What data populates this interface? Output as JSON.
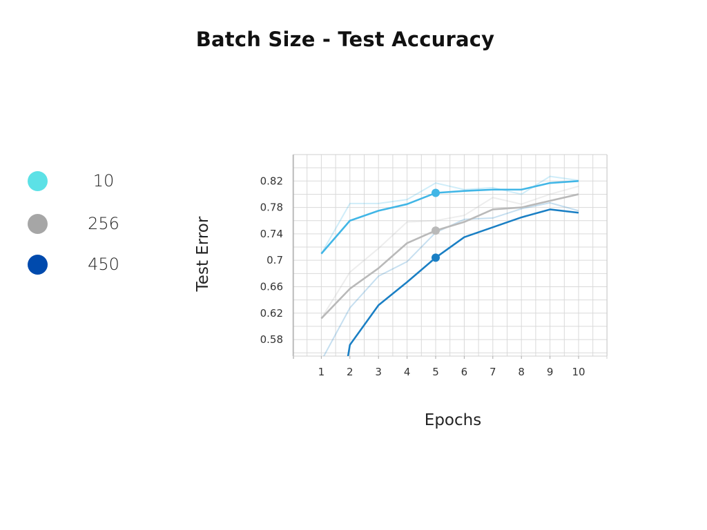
{
  "chart_data": {
    "type": "line",
    "title": "Batch Size - Test Accuracy",
    "xlabel": "Epochs",
    "ylabel": "Test Error",
    "x": [
      1,
      2,
      3,
      4,
      5,
      6,
      7,
      8,
      9,
      10
    ],
    "x_ticks": [
      "1",
      "2",
      "3",
      "4",
      "5",
      "6",
      "7",
      "8",
      "9",
      "10"
    ],
    "y_ticks": [
      "0.58",
      "0.62",
      "0.66",
      "0.7",
      "0.74",
      "0.78",
      "0.82"
    ],
    "xlim": [
      0,
      11
    ],
    "ylim": [
      0.555,
      0.86
    ],
    "grid": true,
    "legend_position": "left",
    "series": [
      {
        "name": "10",
        "color": "#41b6e6",
        "marker_index": 4,
        "values": [
          0.71,
          0.76,
          0.775,
          0.785,
          0.802,
          0.805,
          0.807,
          0.807,
          0.817,
          0.82
        ],
        "raw_values": [
          0.71,
          0.786,
          0.786,
          0.792,
          0.817,
          0.807,
          0.81,
          0.8,
          0.827,
          0.821
        ]
      },
      {
        "name": "256",
        "color": "#b9b9b9",
        "marker_index": 4,
        "values": [
          0.612,
          0.657,
          0.688,
          0.726,
          0.745,
          0.758,
          0.777,
          0.78,
          0.79,
          0.8
        ],
        "raw_values": [
          0.612,
          0.682,
          0.718,
          0.758,
          0.76,
          0.768,
          0.795,
          0.785,
          0.8,
          0.812
        ]
      },
      {
        "name": "450",
        "color": "#1a7fc4",
        "marker_index": 4,
        "values": [
          null,
          0.572,
          0.632,
          0.667,
          0.704,
          0.735,
          0.75,
          0.765,
          0.777,
          0.772
        ],
        "raw_values": [
          0.548,
          0.628,
          0.676,
          0.698,
          0.742,
          0.762,
          0.764,
          0.778,
          0.787,
          0.775
        ]
      }
    ],
    "legend": [
      {
        "label": "10",
        "color": "#5ce1e6"
      },
      {
        "label": "256",
        "color": "#a6a6a6"
      },
      {
        "label": "450",
        "color": "#004aad"
      }
    ]
  }
}
